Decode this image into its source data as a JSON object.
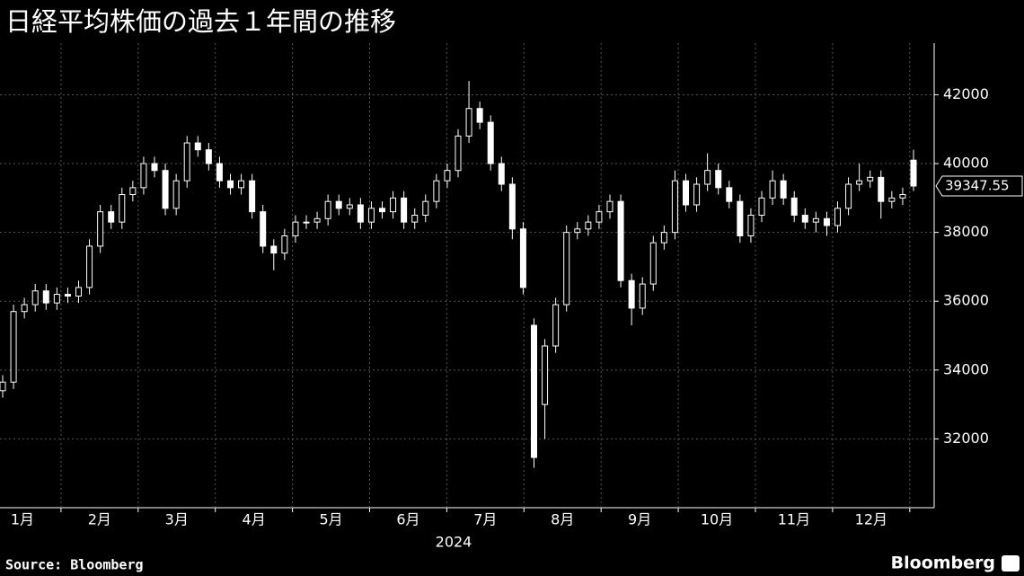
{
  "chart_data": {
    "type": "candlestick",
    "title": "日経平均株価の過去１年間の推移",
    "months": [
      "1月",
      "2月",
      "3月",
      "4月",
      "5月",
      "6月",
      "7月",
      "8月",
      "9月",
      "10月",
      "11月",
      "12月"
    ],
    "x_label": "2024",
    "open": [
      33400,
      33650,
      35700,
      35900,
      36300,
      35950,
      36200,
      36150,
      36400,
      37600,
      38600,
      38300,
      39100,
      39300,
      40000,
      39800,
      38700,
      39500,
      40600,
      40400,
      40000,
      39500,
      39300,
      39500,
      38600,
      37600,
      37400,
      37900,
      38300,
      38300,
      38400,
      38900,
      38700,
      38800,
      38300,
      38700,
      38600,
      39000,
      38300,
      38500,
      38900,
      39500,
      39800,
      40800,
      41600,
      41200,
      40000,
      39400,
      38100,
      35300,
      33000,
      34700,
      35900,
      38000,
      38100,
      38300,
      38600,
      38900,
      36600,
      35800,
      36500,
      37700,
      38000,
      39500,
      38800,
      39400,
      39800,
      39300,
      38900,
      37900,
      38500,
      39000,
      39500,
      39000,
      38500,
      38300,
      38400,
      38200,
      38700,
      39400,
      39500,
      39600,
      38900,
      39000,
      40100
    ],
    "high": [
      33850,
      35900,
      36100,
      36500,
      36500,
      36400,
      36400,
      36600,
      37800,
      38800,
      38800,
      39300,
      39500,
      40200,
      40200,
      40000,
      39700,
      40800,
      40800,
      40600,
      40200,
      39700,
      39700,
      39700,
      38800,
      37800,
      38100,
      38500,
      38500,
      38600,
      39100,
      39100,
      39000,
      39000,
      38900,
      38900,
      39200,
      39200,
      38700,
      39100,
      39700,
      40000,
      41000,
      42400,
      41800,
      41400,
      40200,
      39600,
      38300,
      35500,
      34900,
      36100,
      38200,
      38300,
      38500,
      38800,
      39100,
      39100,
      36800,
      36700,
      37900,
      38200,
      39800,
      39700,
      39600,
      40300,
      40000,
      39500,
      39100,
      38700,
      39200,
      39800,
      39700,
      39200,
      38700,
      38600,
      38600,
      38900,
      39600,
      40000,
      39800,
      39800,
      39200,
      39300,
      40400
    ],
    "low": [
      33200,
      33450,
      35500,
      35700,
      35750,
      35750,
      35950,
      35950,
      36200,
      37400,
      38100,
      38100,
      38900,
      39100,
      39600,
      38500,
      38500,
      39300,
      40200,
      39800,
      39300,
      39100,
      39100,
      38400,
      37400,
      36900,
      37200,
      37700,
      38100,
      38100,
      38200,
      38500,
      38500,
      38100,
      38100,
      38400,
      38400,
      38100,
      38100,
      38300,
      38700,
      39300,
      39600,
      40600,
      41000,
      39800,
      39200,
      37800,
      36200,
      31160,
      32000,
      34500,
      35700,
      37800,
      37900,
      38100,
      38400,
      36400,
      35300,
      35600,
      36300,
      37500,
      37800,
      38600,
      38600,
      39200,
      39100,
      38700,
      37700,
      37700,
      38300,
      38800,
      38800,
      38300,
      38100,
      38000,
      37900,
      38000,
      38500,
      39200,
      39300,
      38400,
      38700,
      38800,
      39200
    ],
    "close": [
      33650,
      35700,
      35900,
      36300,
      35950,
      36200,
      36150,
      36400,
      37600,
      38600,
      38300,
      39100,
      39300,
      40000,
      39800,
      38700,
      39500,
      40600,
      40400,
      40000,
      39500,
      39300,
      39500,
      38600,
      37600,
      37400,
      37900,
      38300,
      38300,
      38400,
      38900,
      38700,
      38800,
      38300,
      38700,
      38600,
      39000,
      38300,
      38500,
      38900,
      39500,
      39800,
      40800,
      41600,
      41200,
      40000,
      39400,
      38100,
      36400,
      31460,
      34700,
      35900,
      38000,
      38100,
      38300,
      38600,
      38900,
      36600,
      35800,
      36500,
      37700,
      38000,
      39500,
      38800,
      39400,
      39800,
      39300,
      38900,
      37900,
      38500,
      39000,
      39500,
      39000,
      38500,
      38300,
      38400,
      38200,
      38700,
      39400,
      39500,
      39600,
      38900,
      39000,
      39100,
      39347.55
    ],
    "last_value_label": "39347.55",
    "color": "#ffffff",
    "ylim": [
      30000,
      43500
    ],
    "yticks": [
      32000,
      34000,
      36000,
      38000,
      40000,
      42000
    ],
    "grid": true
  },
  "source": "Source: Bloomberg",
  "logo": "Bloomberg"
}
